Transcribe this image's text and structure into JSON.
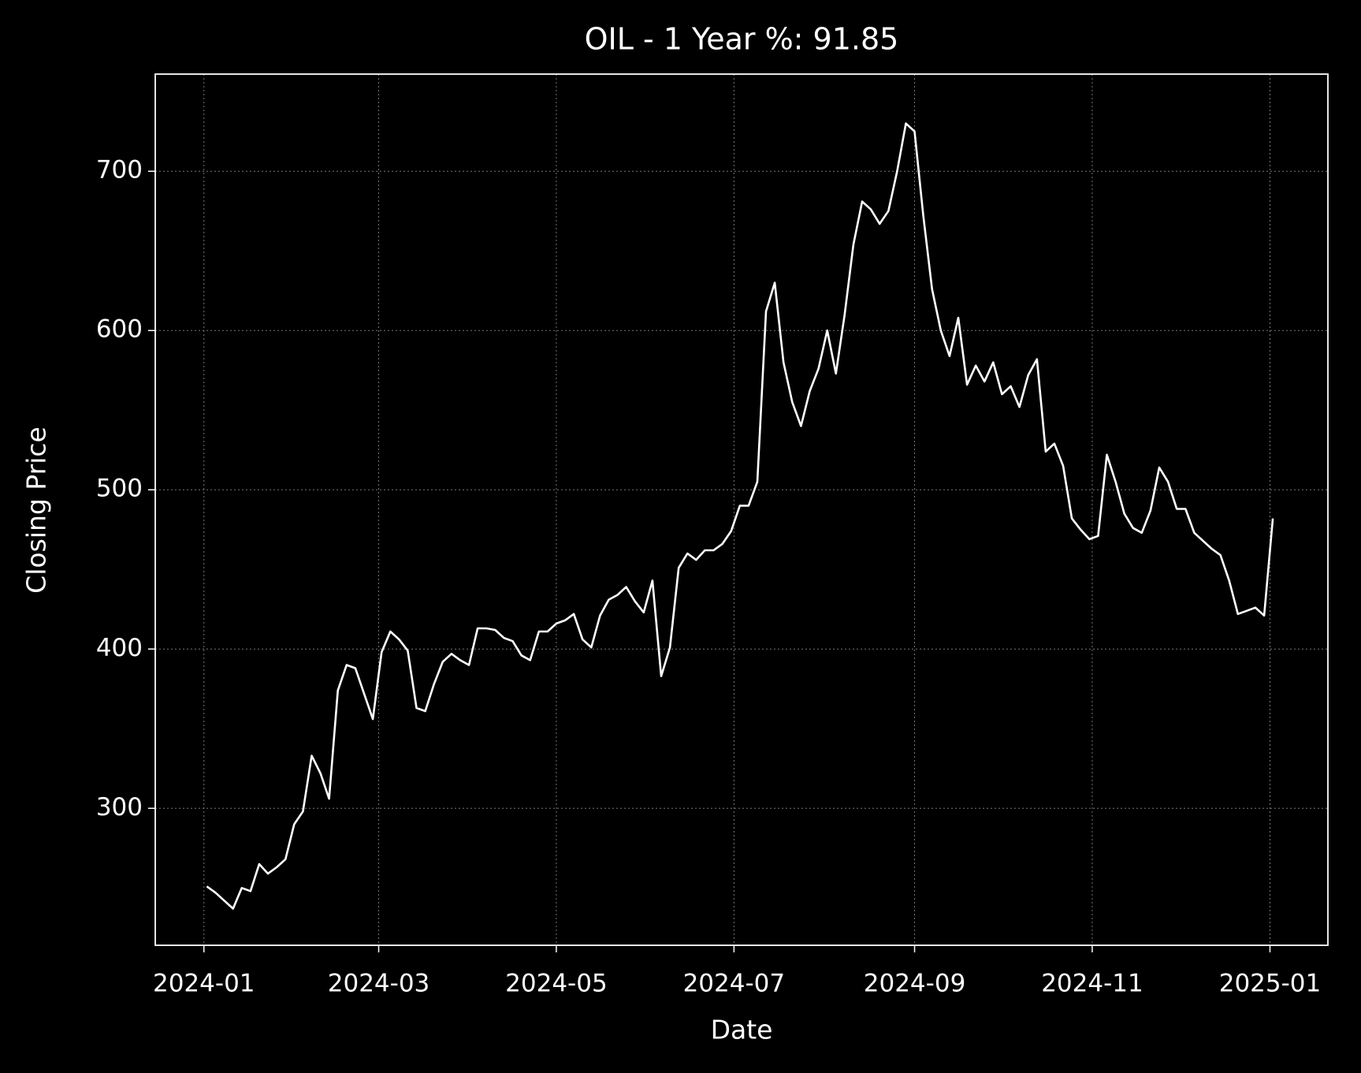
{
  "chart_data": {
    "type": "line",
    "title": "OIL - 1 Year %: 91.85",
    "x_label": "Date",
    "y_label": "Closing Price",
    "color": "#ffffff",
    "grid": true,
    "values": [
      251,
      247,
      242,
      237,
      250,
      248,
      265,
      259,
      263,
      268,
      290,
      298,
      333,
      322,
      306,
      374,
      390,
      388,
      372,
      356,
      398,
      411,
      406,
      399,
      363,
      361,
      378,
      392,
      397,
      393,
      390,
      413,
      413,
      412,
      407,
      405,
      396,
      393,
      411,
      411,
      416,
      418,
      422,
      406,
      401,
      421,
      431,
      434,
      439,
      430,
      423,
      443,
      383,
      401,
      451,
      460,
      456,
      462,
      462,
      466,
      474,
      490,
      490,
      505,
      612,
      630,
      580,
      555,
      540,
      562,
      576,
      600,
      573,
      610,
      654,
      681,
      676,
      667,
      675,
      700,
      730,
      725,
      672,
      626,
      600,
      584,
      608,
      566,
      578,
      568,
      580,
      560,
      565,
      552,
      572,
      582,
      524,
      529,
      515,
      482,
      475,
      469,
      471,
      522,
      505,
      485,
      476,
      473,
      487,
      514,
      505,
      488,
      488,
      473,
      468,
      463,
      459,
      443,
      422,
      424,
      426,
      421,
      482
    ],
    "xlim": [
      -5.9,
      128.3
    ],
    "xticks": [
      {
        "value": -0.33,
        "label": "2024-01"
      },
      {
        "value": 19.67,
        "label": "2024-03"
      },
      {
        "value": 40,
        "label": "2024-05"
      },
      {
        "value": 60.33,
        "label": "2024-07"
      },
      {
        "value": 81,
        "label": "2024-09"
      },
      {
        "value": 101.33,
        "label": "2024-11"
      },
      {
        "value": 121.67,
        "label": "2025-01"
      }
    ],
    "ylim": [
      214,
      761
    ],
    "yticks": [
      300,
      400,
      500,
      600,
      700
    ]
  }
}
